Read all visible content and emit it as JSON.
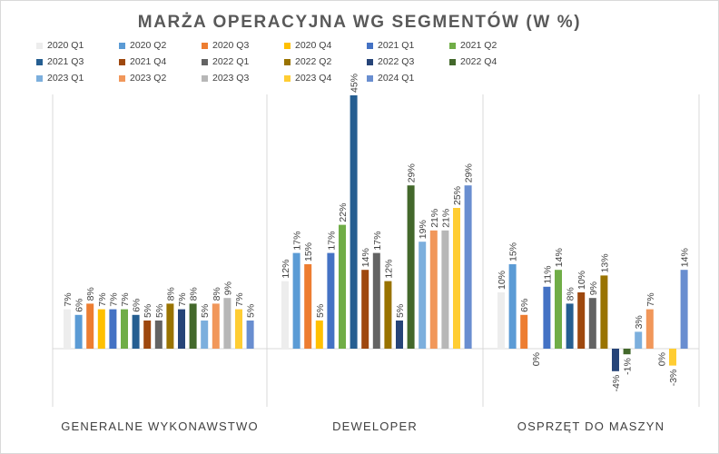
{
  "chart_data": {
    "type": "bar",
    "title": "MARŻA OPERACYJNA WG SEGMENTÓW (W %)",
    "categories": [
      "GENERALNE WYKONAWSTWO",
      "DEWELOPER",
      "OSPRZĘT DO MASZYN"
    ],
    "ylim": [
      -5,
      46
    ],
    "grid": false,
    "legend_position": "top",
    "series": [
      {
        "name": "2020 Q1",
        "color": "#ededed",
        "values": [
          7,
          12,
          10
        ]
      },
      {
        "name": "2020 Q2",
        "color": "#5b9bd5",
        "values": [
          6,
          17,
          15
        ]
      },
      {
        "name": "2020 Q3",
        "color": "#ed7d31",
        "values": [
          8,
          15,
          6
        ]
      },
      {
        "name": "2020 Q4",
        "color": "#ffc000",
        "values": [
          7,
          5,
          0
        ]
      },
      {
        "name": "2021 Q1",
        "color": "#4472c4",
        "values": [
          7,
          17,
          11
        ]
      },
      {
        "name": "2021 Q2",
        "color": "#70ad47",
        "values": [
          7,
          22,
          14
        ]
      },
      {
        "name": "2021 Q3",
        "color": "#255e91",
        "values": [
          6,
          45,
          8
        ]
      },
      {
        "name": "2021 Q4",
        "color": "#9e480e",
        "values": [
          5,
          14,
          10
        ]
      },
      {
        "name": "2022 Q1",
        "color": "#636363",
        "values": [
          5,
          17,
          9
        ]
      },
      {
        "name": "2022 Q2",
        "color": "#997300",
        "values": [
          8,
          12,
          13
        ]
      },
      {
        "name": "2022 Q3",
        "color": "#264478",
        "values": [
          7,
          5,
          -4
        ]
      },
      {
        "name": "2022 Q4",
        "color": "#43682b",
        "values": [
          8,
          29,
          -1
        ]
      },
      {
        "name": "2023 Q1",
        "color": "#7cafdd",
        "values": [
          5,
          19,
          3
        ]
      },
      {
        "name": "2023 Q2",
        "color": "#f1975a",
        "values": [
          8,
          21,
          7
        ]
      },
      {
        "name": "2023 Q3",
        "color": "#b7b7b7",
        "values": [
          9,
          21,
          0
        ]
      },
      {
        "name": "2023 Q4",
        "color": "#ffcd33",
        "values": [
          7,
          25,
          -3
        ]
      },
      {
        "name": "2024 Q1",
        "color": "#698ed0",
        "values": [
          5,
          29,
          14
        ]
      }
    ]
  }
}
